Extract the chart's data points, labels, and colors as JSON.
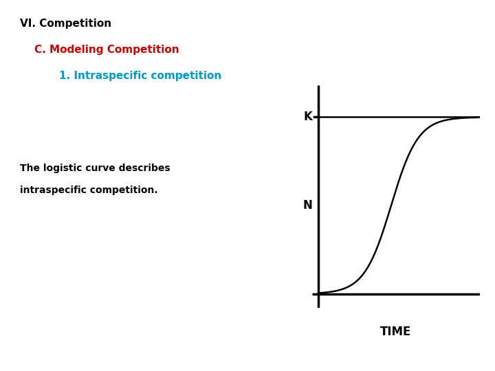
{
  "title1": "VI. Competition",
  "title2": "C. Modeling Competition",
  "title3": "1. Intraspecific competition",
  "body_text_line1": "The logistic curve describes",
  "body_text_line2": "intraspecific competition.",
  "ylabel": "N",
  "xlabel": "TIME",
  "k_label": "K",
  "title1_color": "#000000",
  "title2_color": "#cc0000",
  "title3_color": "#0099cc",
  "body_text_color": "#000000",
  "curve_color": "#000000",
  "axis_color": "#000000",
  "bg_color": "#ffffff",
  "title1_fontsize": 11,
  "title2_fontsize": 11,
  "title3_fontsize": 11,
  "body_fontsize": 10,
  "axis_label_fontsize": 12,
  "k_fontsize": 12,
  "logistic_K": 1.0,
  "logistic_r": 12.0,
  "logistic_t0": 0.45
}
